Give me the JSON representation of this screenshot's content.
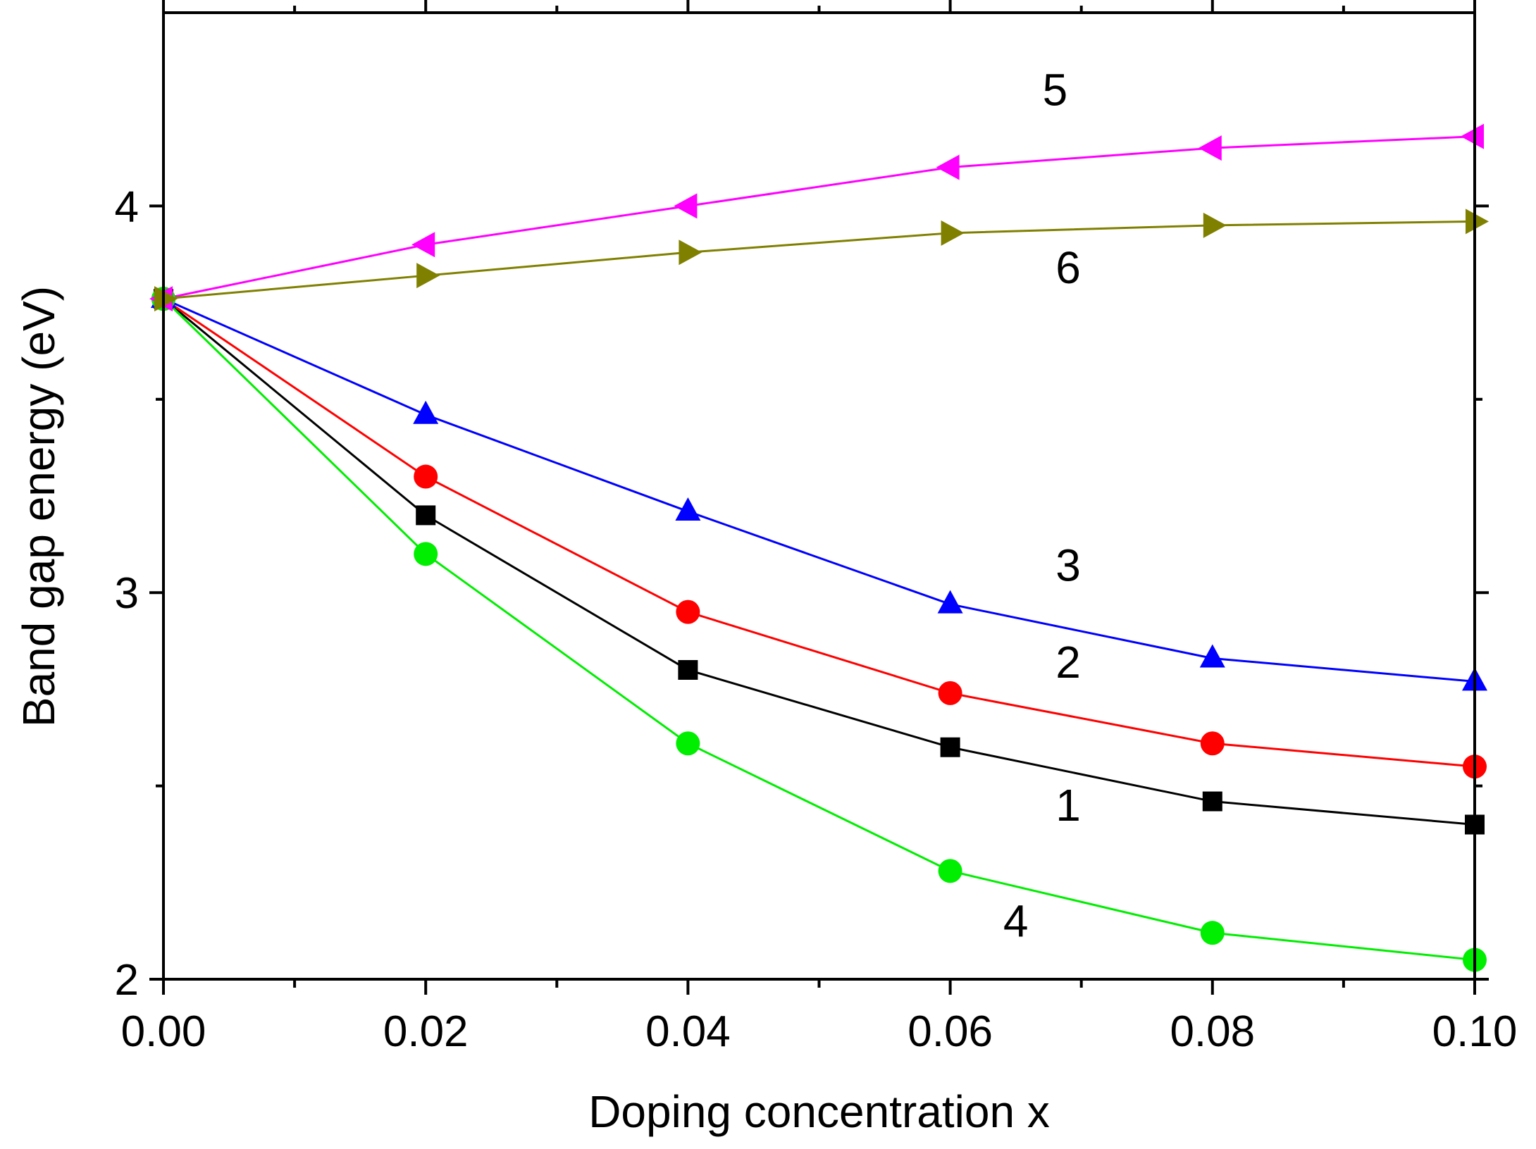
{
  "chart_data": {
    "type": "line",
    "title": "",
    "xlabel": "Doping concentration x",
    "ylabel": "Band gap energy (eV)",
    "xlim": [
      0.0,
      0.1
    ],
    "ylim": [
      2.0,
      4.5
    ],
    "x": [
      0.0,
      0.02,
      0.04,
      0.06,
      0.08,
      0.1
    ],
    "x_ticks": [
      {
        "value": 0.0,
        "label": "0.00"
      },
      {
        "value": 0.02,
        "label": "0.02"
      },
      {
        "value": 0.04,
        "label": "0.04"
      },
      {
        "value": 0.06,
        "label": "0.06"
      },
      {
        "value": 0.08,
        "label": "0.08"
      },
      {
        "value": 0.1,
        "label": "0.10"
      }
    ],
    "x_minor_ticks": [
      0.01,
      0.03,
      0.05,
      0.07,
      0.09
    ],
    "y_ticks": [
      {
        "value": 2,
        "label": "2"
      },
      {
        "value": 3,
        "label": "3"
      },
      {
        "value": 4,
        "label": "4"
      }
    ],
    "y_minor_ticks": [
      2.5,
      3.5
    ],
    "grid": false,
    "legend": "none",
    "series": [
      {
        "name": "1",
        "color": "#000000",
        "marker": "square",
        "values": [
          3.76,
          3.2,
          2.8,
          2.6,
          2.46,
          2.4
        ],
        "label_at": [
          0.069,
          2.41
        ]
      },
      {
        "name": "2",
        "color": "#ff0000",
        "marker": "circle",
        "values": [
          3.76,
          3.3,
          2.95,
          2.74,
          2.61,
          2.55
        ],
        "label_at": [
          0.069,
          2.78
        ]
      },
      {
        "name": "3",
        "color": "#0000ff",
        "marker": "triangle-up",
        "values": [
          3.76,
          3.46,
          3.21,
          2.97,
          2.83,
          2.77
        ],
        "label_at": [
          0.069,
          3.03
        ]
      },
      {
        "name": "4",
        "color": "#00ee00",
        "marker": "circle",
        "values": [
          3.76,
          3.1,
          2.61,
          2.28,
          2.12,
          2.05
        ],
        "label_at": [
          0.065,
          2.11
        ]
      },
      {
        "name": "5",
        "color": "#ff00ff",
        "marker": "triangle-left",
        "values": [
          3.76,
          3.9,
          4.0,
          4.1,
          4.15,
          4.18
        ],
        "label_at": [
          0.068,
          4.26
        ]
      },
      {
        "name": "6",
        "color": "#808000",
        "marker": "triangle-right",
        "values": [
          3.76,
          3.82,
          3.88,
          3.93,
          3.95,
          3.96
        ],
        "label_at": [
          0.069,
          3.8
        ]
      }
    ]
  }
}
